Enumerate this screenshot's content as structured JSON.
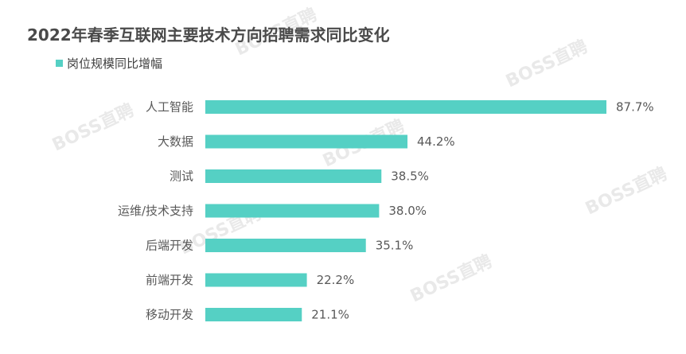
{
  "watermark": "BOSS直聘",
  "colors": {
    "bar": "#55d0c4",
    "text": "#595959",
    "title": "#4a4a4a"
  },
  "chart_data": {
    "type": "bar",
    "orientation": "horizontal",
    "title": "2022年春季互联网主要技术方向招聘需求同比变化",
    "legend_position": "top-left",
    "grid": false,
    "unit": "%",
    "xlim": [
      0,
      90
    ],
    "categories": [
      "人工智能",
      "大数据",
      "测试",
      "运维/技术支持",
      "后端开发",
      "前端开发",
      "移动开发"
    ],
    "series": [
      {
        "name": "岗位规模同比增幅",
        "values": [
          87.7,
          44.2,
          38.5,
          38.0,
          35.1,
          22.2,
          21.1
        ],
        "labels": [
          "87.7%",
          "44.2%",
          "38.5%",
          "38.0%",
          "35.1%",
          "22.2%",
          "21.1%"
        ]
      }
    ]
  }
}
